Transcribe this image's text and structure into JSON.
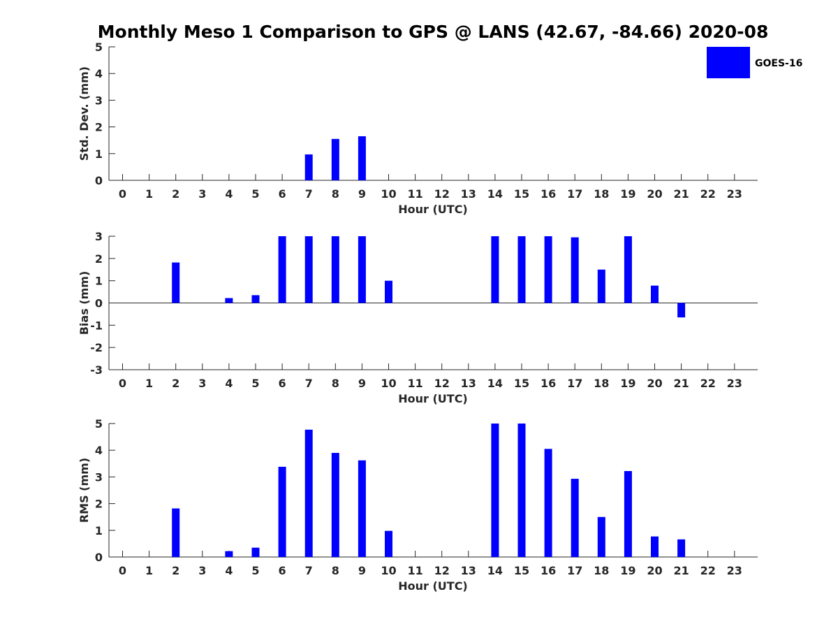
{
  "chart_data": {
    "type": "bar",
    "title": "Monthly Meso 1 Comparison to GPS @ LANS (42.67, -84.66) 2020-08",
    "legend": {
      "label": "GOES-16",
      "color": "#0000ff",
      "placement": "top-right"
    },
    "subplots": [
      {
        "ylabel": "Std. Dev. (mm)",
        "xlabel": "Hour (UTC)",
        "ylim": [
          0,
          5
        ],
        "yticks": [
          0,
          1,
          2,
          3,
          4,
          5
        ],
        "hours": [
          7,
          8,
          9
        ],
        "values": [
          0.97,
          1.55,
          1.65
        ]
      },
      {
        "ylabel": "Bias (mm)",
        "xlabel": "Hour (UTC)",
        "ylim": [
          -3,
          3
        ],
        "yticks": [
          -3,
          -2,
          -1,
          0,
          1,
          2,
          3
        ],
        "hours": [
          2,
          4,
          5,
          6,
          7,
          8,
          9,
          10,
          14,
          15,
          16,
          17,
          18,
          19,
          20,
          21
        ],
        "values": [
          1.82,
          0.22,
          0.35,
          3.0,
          3.0,
          3.0,
          3.0,
          1.0,
          3.0,
          3.0,
          3.0,
          2.95,
          1.5,
          3.0,
          0.78,
          -0.65
        ]
      },
      {
        "ylabel": "RMS (mm)",
        "xlabel": "Hour (UTC)",
        "ylim": [
          0,
          5
        ],
        "yticks": [
          0,
          1,
          2,
          3,
          4,
          5
        ],
        "hours": [
          2,
          4,
          5,
          6,
          7,
          8,
          9,
          10,
          14,
          15,
          16,
          17,
          18,
          19,
          20,
          21
        ],
        "values": [
          1.82,
          0.22,
          0.35,
          3.38,
          4.77,
          3.9,
          3.62,
          0.98,
          5.0,
          5.0,
          4.05,
          2.93,
          1.5,
          3.22,
          0.77,
          0.66
        ]
      }
    ],
    "xticks": [
      0,
      1,
      2,
      3,
      4,
      5,
      6,
      7,
      8,
      9,
      10,
      11,
      12,
      13,
      14,
      15,
      16,
      17,
      18,
      19,
      20,
      21,
      22,
      23
    ]
  }
}
